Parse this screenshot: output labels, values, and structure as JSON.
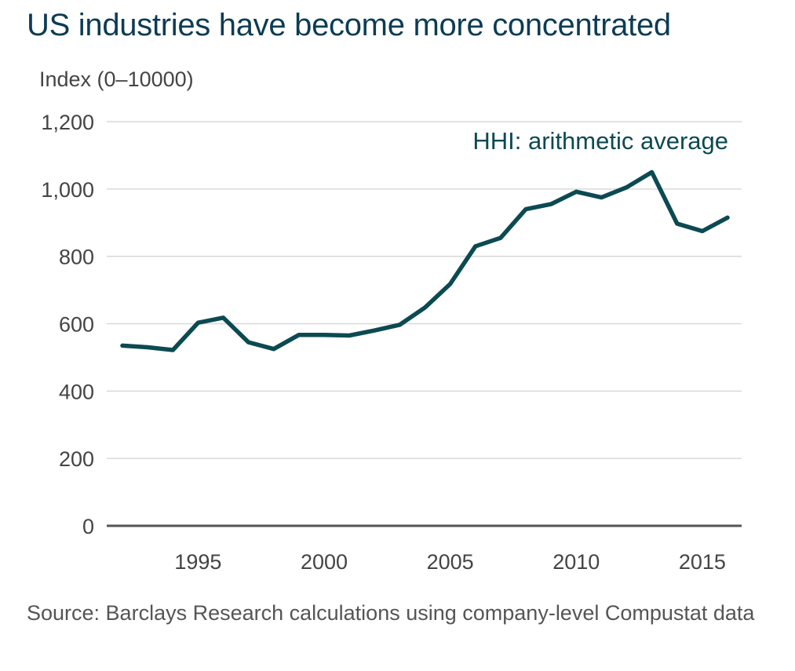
{
  "colors": {
    "title": "#0c3c54",
    "series": "#0c4a52",
    "grid": "#d9d9d9",
    "axis": "#555555",
    "text": "#444444"
  },
  "chart_data": {
    "type": "line",
    "title": "US industries have become more concentrated",
    "ylabel": "Index (0–10000)",
    "xlabel": "",
    "ylim": [
      0,
      1200
    ],
    "xlim": [
      1992,
      2016
    ],
    "grid": true,
    "y_ticks": [
      "0",
      "200",
      "400",
      "600",
      "800",
      "1,000",
      "1,200"
    ],
    "y_tick_values": [
      0,
      200,
      400,
      600,
      800,
      1000,
      1200
    ],
    "x_ticks": [
      "1995",
      "2000",
      "2005",
      "2010",
      "2015"
    ],
    "x_tick_values": [
      1995,
      2000,
      2005,
      2010,
      2015
    ],
    "series": [
      {
        "name": "HHI: arithmetic average",
        "x": [
          1992,
          1993,
          1994,
          1995,
          1996,
          1997,
          1998,
          1999,
          2000,
          2001,
          2002,
          2003,
          2004,
          2005,
          2006,
          2007,
          2008,
          2009,
          2010,
          2011,
          2012,
          2013,
          2014,
          2015,
          2016
        ],
        "values": [
          535,
          530,
          522,
          603,
          618,
          545,
          525,
          567,
          567,
          565,
          580,
          597,
          648,
          718,
          830,
          855,
          940,
          955,
          992,
          975,
          1005,
          1050,
          897,
          875,
          915
        ]
      }
    ],
    "source": "Source: Barclays Research calculations using company-level Compustat data"
  }
}
